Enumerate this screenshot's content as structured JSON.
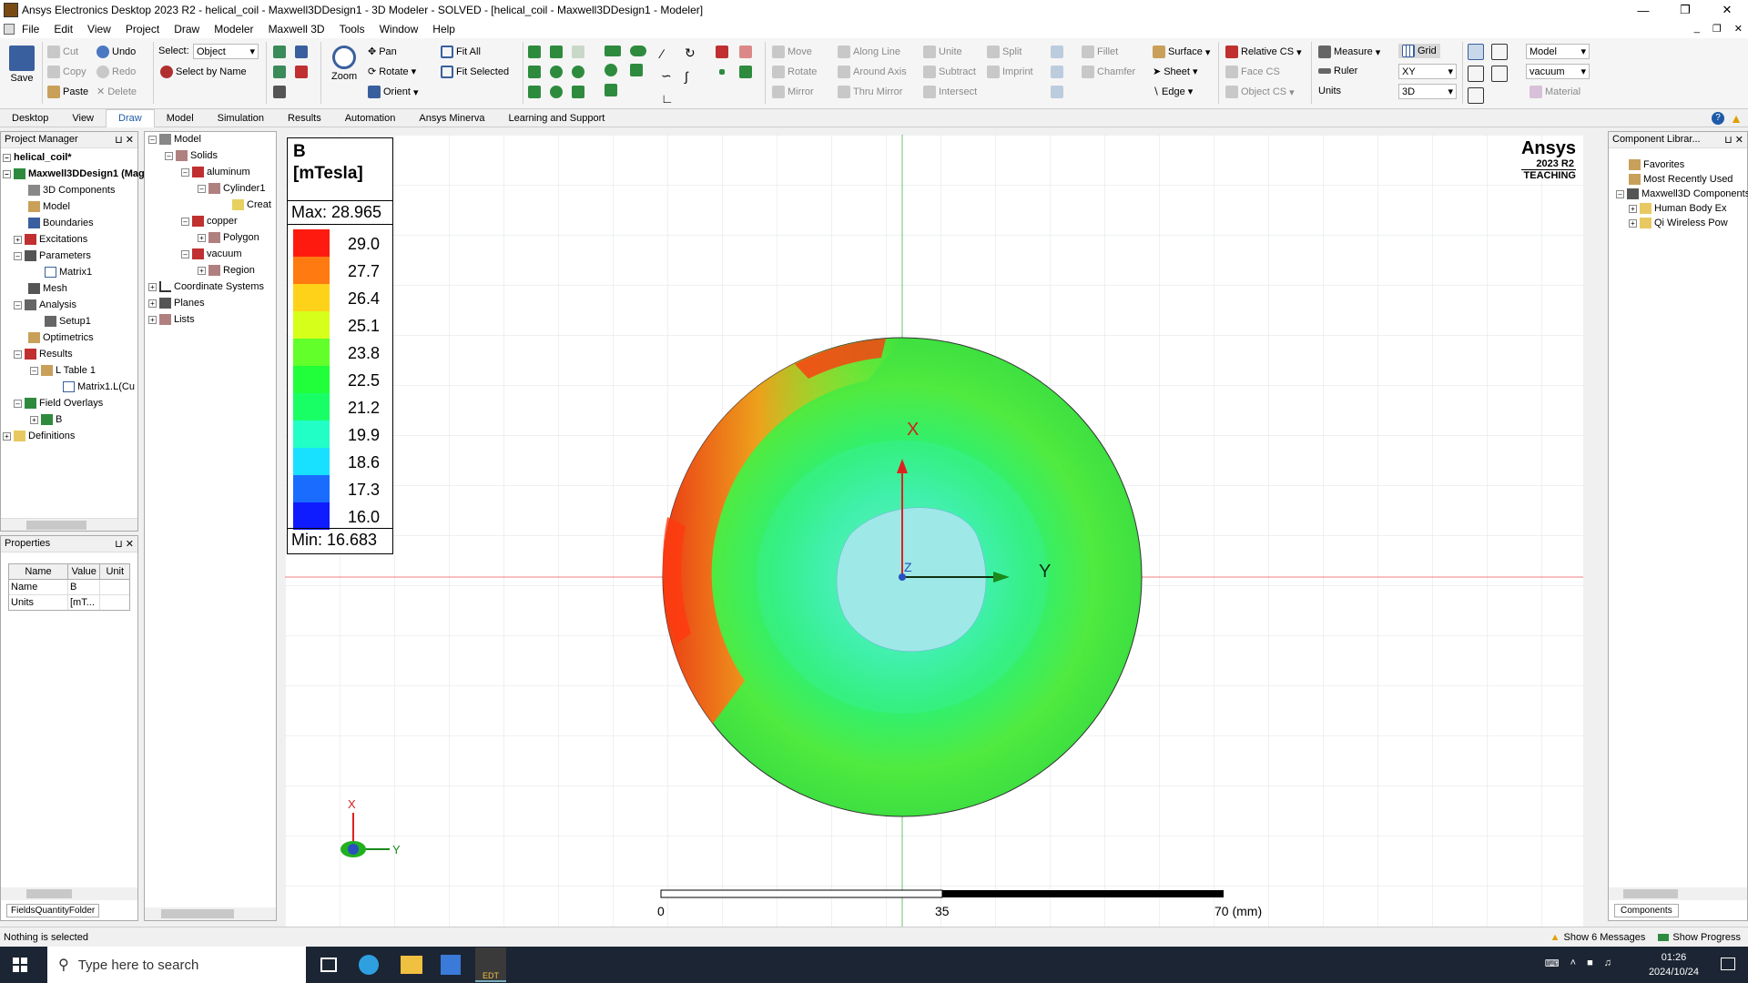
{
  "window": {
    "title": "Ansys Electronics Desktop 2023 R2 - helical_coil - Maxwell3DDesign1 - 3D Modeler - SOLVED - [helical_coil - Maxwell3DDesign1 - Modeler]"
  },
  "menu": [
    "File",
    "Edit",
    "View",
    "Project",
    "Draw",
    "Modeler",
    "Maxwell 3D",
    "Tools",
    "Window",
    "Help"
  ],
  "ribbon": {
    "save": "Save",
    "cut": "Cut",
    "copy": "Copy",
    "paste": "Paste",
    "undo": "Undo",
    "redo": "Redo",
    "delete": "Delete",
    "select_label": "Select:",
    "select_value": "Object",
    "select_by_name": "Select by Name",
    "zoom": "Zoom",
    "pan": "Pan",
    "rotate": "Rotate",
    "orient": "Orient",
    "fit_all": "Fit All",
    "fit_selected": "Fit Selected",
    "move": "Move",
    "rotate2": "Rotate",
    "mirror": "Mirror",
    "along_line": "Along Line",
    "around_axis": "Around Axis",
    "thru_mirror": "Thru Mirror",
    "unite": "Unite",
    "subtract": "Subtract",
    "intersect": "Intersect",
    "split": "Split",
    "imprint": "Imprint",
    "fillet": "Fillet",
    "chamfer": "Chamfer",
    "surface": "Surface",
    "sheet": "Sheet",
    "edge": "Edge",
    "relative_cs": "Relative CS",
    "face_cs": "Face CS",
    "object_cs": "Object CS",
    "measure": "Measure",
    "ruler": "Ruler",
    "units": "Units",
    "grid": "Grid",
    "plane": "XY",
    "dim": "3D",
    "model": "Model",
    "material": "vacuum",
    "material_btn": "Material"
  },
  "tabs": [
    "Desktop",
    "View",
    "Draw",
    "Model",
    "Simulation",
    "Results",
    "Automation",
    "Ansys Minerva",
    "Learning and Support"
  ],
  "project_manager": {
    "title": "Project Manager",
    "items": [
      "helical_coil*",
      "Maxwell3DDesign1 (Magnetostatic)",
      "3D Components",
      "Model",
      "Boundaries",
      "Excitations",
      "Parameters",
      "Matrix1",
      "Mesh",
      "Analysis",
      "Setup1",
      "Optimetrics",
      "Results",
      "L Table 1",
      "Matrix1.L(Cu",
      "Field Overlays",
      "B",
      "Definitions"
    ]
  },
  "model_tree": {
    "items": [
      "Model",
      "Solids",
      "aluminum",
      "Cylinder1",
      "Creat",
      "copper",
      "Polygon",
      "vacuum",
      "Region",
      "Coordinate Systems",
      "Planes",
      "Lists"
    ]
  },
  "properties": {
    "title": "Properties",
    "headers": [
      "Name",
      "Value",
      "Unit"
    ],
    "rows": [
      [
        "Name",
        "B",
        ""
      ],
      [
        "Units",
        "[mT...",
        ""
      ]
    ],
    "tab": "FieldsQuantityFolder"
  },
  "legend": {
    "quantity": "B",
    "units": "[mTesla]",
    "max_label": "Max: 28.965",
    "min_label": "Min: 16.683",
    "levels": [
      "29.0",
      "27.7",
      "26.4",
      "25.1",
      "23.8",
      "22.5",
      "21.2",
      "19.9",
      "18.6",
      "17.3",
      "16.0"
    ],
    "colors": [
      "#ff1a10",
      "#ff7a10",
      "#ffd21a",
      "#d6ff1a",
      "#62ff2a",
      "#20ff3a",
      "#18ff66",
      "#22ffc6",
      "#18e0ff",
      "#1a6cff",
      "#0f1cff"
    ]
  },
  "brand": {
    "name": "Ansys",
    "version": "2023 R2",
    "edition": "TEACHING"
  },
  "axes": {
    "x": "X",
    "y": "Y",
    "z": "Z"
  },
  "scale": {
    "t0": "0",
    "t1": "35",
    "t2": "70 (mm)"
  },
  "component_library": {
    "title": "Component Librar...",
    "items": [
      "Favorites",
      "Most Recently Used",
      "Maxwell3D Components",
      "Human Body Ex",
      "Qi Wireless Pow"
    ],
    "tab": "Components"
  },
  "status": {
    "left": "Nothing is selected",
    "messages": "Show 6 Messages",
    "progress": "Show Progress"
  },
  "taskbar": {
    "search": "Type here to search",
    "time": "01:26",
    "date": "2024/10/24",
    "edt": "EDT"
  }
}
